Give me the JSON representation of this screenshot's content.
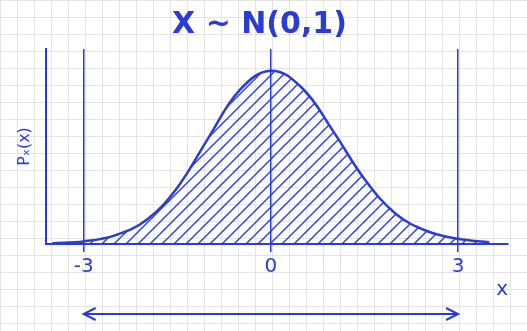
{
  "chart_data": {
    "type": "line",
    "title": "X ~ N(0,1)",
    "x_label": "x",
    "y_label": "Pₓ(x)",
    "x": [
      -3.5,
      -3,
      -2.5,
      -2,
      -1.5,
      -1,
      -0.5,
      0,
      0.5,
      1,
      1.5,
      2,
      2.5,
      3,
      3.5
    ],
    "values": [
      0.002,
      0.006,
      0.02,
      0.055,
      0.13,
      0.245,
      0.355,
      0.4,
      0.36,
      0.26,
      0.15,
      0.07,
      0.03,
      0.012,
      0.004
    ],
    "color": "#2a3cd4",
    "xlim": [
      -3.6,
      3.8
    ],
    "xticks": [
      -3,
      0,
      3
    ],
    "ylim": [
      0,
      0.45
    ],
    "grid": true,
    "tick_labels": "x"
  }
}
